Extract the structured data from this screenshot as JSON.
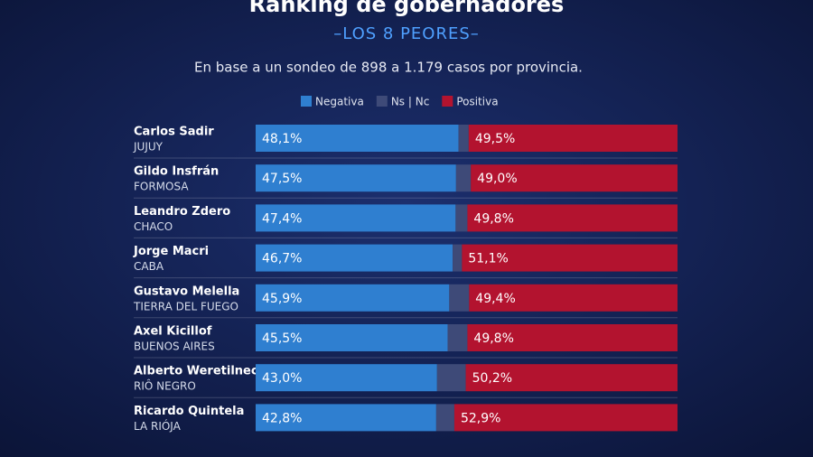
{
  "chart_data": {
    "type": "stacked-bar-horizontal",
    "title": "Ranking de gobernadores",
    "subtitle": "–LOS 8 PEORES–",
    "note": "En base a un sondeo de 898 a 1.179 casos por provincia.",
    "categories": [
      "Carlos Sadir",
      "Gildo Insfrán",
      "Leandro Zdero",
      "Jorge Macri",
      "Gustavo Melella",
      "Axel Kicillof",
      "Alberto Weretilneck",
      "Ricardo Quintela"
    ],
    "provinces": [
      "JUJUY",
      "FORMOSA",
      "CHACO",
      "CABA",
      "TIERRA DEL FUEGO",
      "BUENOS AIRES",
      "RIÔ NEGRO",
      "LA RIÓJA"
    ],
    "xlim": [
      0,
      100
    ],
    "series": [
      {
        "name": "Negativa",
        "color": "#2f7fd0",
        "values": [
          48.1,
          47.5,
          47.4,
          46.7,
          45.9,
          45.5,
          43.0,
          42.8
        ],
        "value_labels": [
          "48,1%",
          "47,5%",
          "47,4%",
          "46,7%",
          "45,9%",
          "45,5%",
          "43,0%",
          "42,8%"
        ]
      },
      {
        "name": "Ns | Nc",
        "color": "#3e4a78",
        "values": [
          2.4,
          3.5,
          2.8,
          2.2,
          4.7,
          4.7,
          6.8,
          4.3
        ]
      },
      {
        "name": "Positiva",
        "color": "#b3132f",
        "values": [
          49.5,
          49.0,
          49.8,
          51.1,
          49.4,
          49.8,
          50.2,
          52.9
        ],
        "value_labels": [
          "49,5%",
          "49,0%",
          "49,8%",
          "51,1%",
          "49,4%",
          "49,8%",
          "50,2%",
          "52,9%"
        ]
      }
    ]
  }
}
